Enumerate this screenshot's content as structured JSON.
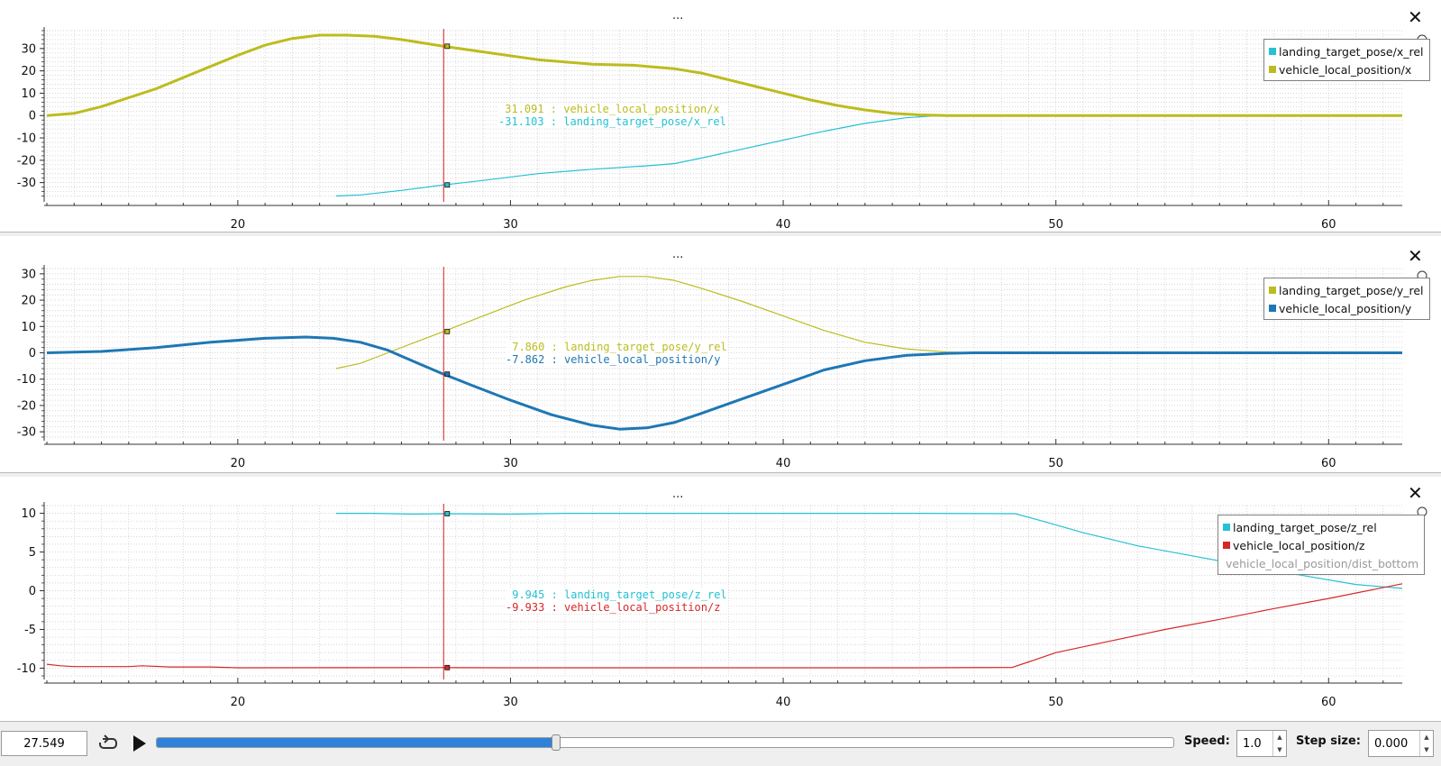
{
  "colors": {
    "cyan": "#25c1d4",
    "olive": "#bcbc1f",
    "blue": "#1f77b4",
    "red": "#d62728",
    "cursor": "#e02020"
  },
  "cursor_time": 27.549,
  "panels": [
    {
      "dots": "...",
      "legend": [
        {
          "label": "landing_target_pose/x_rel",
          "color": "#25c1d4"
        },
        {
          "label": "vehicle_local_position/x",
          "color": "#bcbc1f"
        }
      ],
      "readout": [
        {
          "text": " 31.091 : vehicle_local_position/x",
          "color": "#bcbc1f"
        },
        {
          "text": "-31.103 : landing_target_pose/x_rel",
          "color": "#25c1d4"
        }
      ]
    },
    {
      "dots": "...",
      "legend": [
        {
          "label": "landing_target_pose/y_rel",
          "color": "#bcbc1f"
        },
        {
          "label": "vehicle_local_position/y",
          "color": "#1f77b4"
        }
      ],
      "readout": [
        {
          "text": " 7.860 : landing_target_pose/y_rel",
          "color": "#bcbc1f"
        },
        {
          "text": "-7.862 : vehicle_local_position/y",
          "color": "#1f77b4"
        }
      ]
    },
    {
      "dots": "...",
      "legend": [
        {
          "label": "landing_target_pose/z_rel",
          "color": "#25c1d4"
        },
        {
          "label": "vehicle_local_position/z",
          "color": "#d62728"
        },
        {
          "label": "vehicle_local_position/dist_bottom",
          "color": "",
          "hidden": true
        }
      ],
      "readout": [
        {
          "text": " 9.945 : landing_target_pose/z_rel",
          "color": "#25c1d4"
        },
        {
          "text": "-9.933 : vehicle_local_position/z",
          "color": "#d62728"
        }
      ]
    }
  ],
  "controls": {
    "time_value": "27.549",
    "play_progress": 0.393,
    "speed_label": "Speed:",
    "speed_value": "1.0",
    "step_label": "Step size:",
    "step_value": "0.000",
    "loop_icon": "loop-icon",
    "play_icon": "play-icon"
  },
  "chart_data": [
    {
      "type": "line",
      "xlim": [
        12.9,
        62.7
      ],
      "xticks": [
        20,
        30,
        40,
        50,
        60
      ],
      "ylim": [
        -37,
        38
      ],
      "yticks": [
        30,
        20,
        10,
        0,
        -10,
        -20,
        -30
      ],
      "grid": true,
      "legend_position": "top-right",
      "series": [
        {
          "name": "landing_target_pose/x_rel",
          "color": "#25c1d4",
          "width": 1.2,
          "x": [
            23.6,
            24.5,
            26,
            27.5,
            29,
            31,
            33,
            35,
            36,
            37,
            38.5,
            40,
            41.5,
            43,
            44.5,
            45.5,
            46.5
          ],
          "y": [
            -36,
            -35.5,
            -33.5,
            -31.1,
            -29,
            -26,
            -24,
            -22.5,
            -21.5,
            -19,
            -15,
            -11,
            -7,
            -3.5,
            -1,
            -0.2,
            0
          ]
        },
        {
          "name": "vehicle_local_position/x",
          "color": "#bcbc1f",
          "width": 3,
          "x": [
            13,
            14,
            15,
            17,
            19,
            20,
            21,
            22,
            23,
            24,
            25,
            26,
            27.5,
            29,
            31,
            33,
            34.5,
            36,
            37,
            38,
            39,
            40,
            41,
            42,
            43,
            44,
            45,
            46,
            50,
            55,
            62.7
          ],
          "y": [
            0,
            1,
            4,
            12,
            22,
            27,
            31.5,
            34.5,
            36,
            36,
            35.5,
            34,
            31.1,
            28.5,
            25,
            23,
            22.5,
            21,
            19,
            16,
            13,
            10,
            7,
            4.5,
            2.5,
            1,
            0.3,
            0,
            0,
            0,
            0
          ]
        }
      ]
    },
    {
      "type": "line",
      "xlim": [
        12.9,
        62.7
      ],
      "xticks": [
        20,
        30,
        40,
        50,
        60
      ],
      "ylim": [
        -32,
        32
      ],
      "yticks": [
        30,
        20,
        10,
        0,
        -10,
        -20,
        -30
      ],
      "grid": true,
      "legend_position": "top-right",
      "series": [
        {
          "name": "landing_target_pose/y_rel",
          "color": "#bcbc1f",
          "width": 1.2,
          "x": [
            23.6,
            24.5,
            25.5,
            26.5,
            27.5,
            29,
            30.5,
            32,
            33,
            34,
            35,
            36,
            37,
            38.5,
            40,
            41.5,
            43,
            44.5,
            46,
            47
          ],
          "y": [
            -6,
            -4,
            0,
            4,
            7.9,
            14,
            20,
            25,
            27.5,
            29,
            29,
            27.5,
            24.5,
            19.5,
            14,
            8.5,
            4,
            1.5,
            0.3,
            0
          ]
        },
        {
          "name": "vehicle_local_position/y",
          "color": "#1f77b4",
          "width": 3,
          "x": [
            13,
            15,
            17,
            19,
            21,
            22.5,
            23.5,
            24.5,
            25.5,
            26.5,
            27.5,
            28.5,
            30,
            31.5,
            33,
            34,
            35,
            36,
            37,
            38.5,
            40,
            41.5,
            43,
            44.5,
            46,
            47,
            50,
            55,
            62.7
          ],
          "y": [
            0,
            0.5,
            2,
            4,
            5.5,
            6,
            5.5,
            4,
            1,
            -3.5,
            -7.9,
            -12,
            -18,
            -23.5,
            -27.5,
            -29,
            -28.5,
            -26.5,
            -23,
            -17.5,
            -12,
            -6.5,
            -3,
            -1,
            -0.2,
            0,
            0,
            0,
            0
          ]
        }
      ]
    },
    {
      "type": "line",
      "xlim": [
        12.9,
        62.7
      ],
      "xticks": [
        20,
        30,
        40,
        50,
        60
      ],
      "ylim": [
        -11,
        11
      ],
      "yticks": [
        10,
        5,
        0,
        -5,
        -10
      ],
      "grid": true,
      "legend_position": "top-right",
      "series": [
        {
          "name": "landing_target_pose/z_rel",
          "color": "#25c1d4",
          "width": 1.2,
          "x": [
            23.6,
            25,
            26.5,
            27.5,
            30,
            32,
            35,
            40,
            45,
            48.5,
            49.5,
            51,
            53,
            55,
            57,
            59,
            61,
            62.7
          ],
          "y": [
            10,
            10,
            9.9,
            9.95,
            9.9,
            10,
            10,
            10,
            10,
            9.95,
            9,
            7.5,
            5.8,
            4.5,
            3.2,
            2,
            0.8,
            0.3
          ]
        },
        {
          "name": "vehicle_local_position/z",
          "color": "#d62728",
          "width": 1.2,
          "x": [
            13,
            13.5,
            14,
            16,
            16.5,
            17.5,
            19,
            20,
            27.5,
            30,
            35,
            40,
            45,
            48.4,
            49,
            50,
            52,
            54,
            56,
            58,
            60,
            62.7
          ],
          "y": [
            -9.5,
            -9.7,
            -9.8,
            -9.8,
            -9.7,
            -9.85,
            -9.85,
            -9.95,
            -9.93,
            -9.95,
            -9.95,
            -9.95,
            -9.95,
            -9.9,
            -9.2,
            -8,
            -6.5,
            -5,
            -3.7,
            -2.3,
            -1,
            0.9
          ]
        }
      ]
    }
  ]
}
